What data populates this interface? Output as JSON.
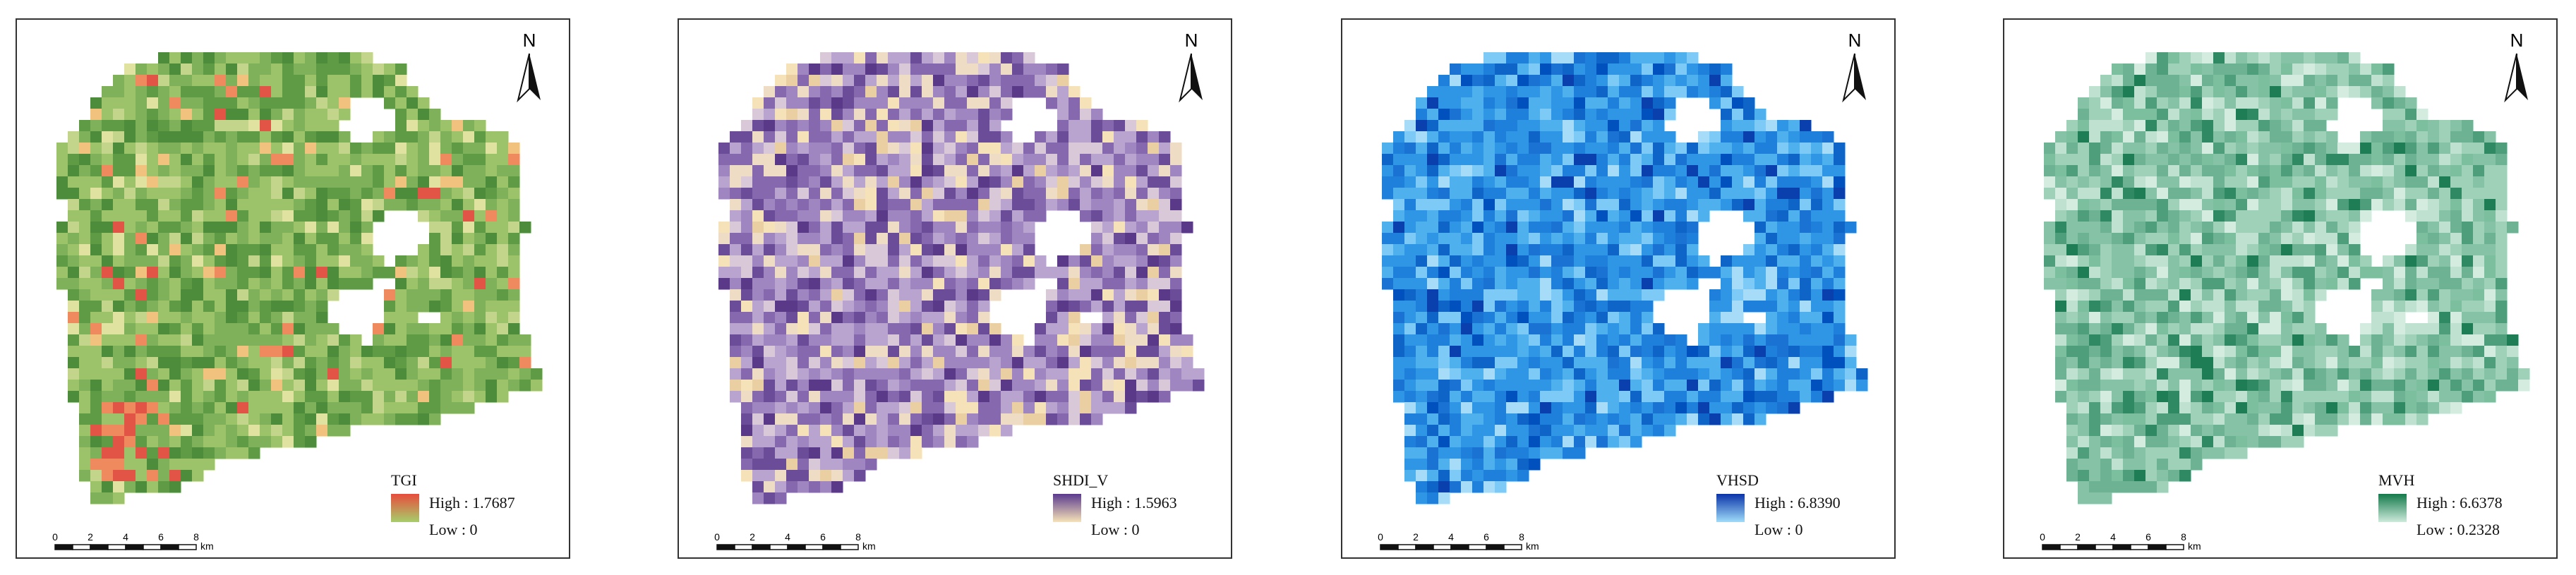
{
  "panels": [
    {
      "legend_title": "TGI",
      "high_label": "High : 1.7687",
      "low_label": "Low : 0",
      "colors": [
        "#9cc26a",
        "#7fb05a",
        "#5f9a45",
        "#4d8c3a",
        "#c2d58a",
        "#e0e2a0",
        "#f1c27d",
        "#ee8a5e",
        "#e25546"
      ],
      "weights": [
        0.28,
        0.22,
        0.2,
        0.12,
        0.08,
        0.04,
        0.03,
        0.02,
        0.01
      ],
      "ramp": [
        "#e74c3c",
        "#a5cf6a"
      ]
    },
    {
      "legend_title": "SHDI_V",
      "high_label": "High : 1.5963",
      "low_label": "Low : 0",
      "colors": [
        "#b9a4cf",
        "#9f86c0",
        "#8568ae",
        "#6a4c98",
        "#5a3a88",
        "#d8c8d8",
        "#eedcc4",
        "#f5e2b8",
        "#e9cfa2"
      ],
      "weights": [
        0.18,
        0.2,
        0.17,
        0.1,
        0.05,
        0.1,
        0.1,
        0.06,
        0.04
      ],
      "ramp": [
        "#5b3a8e",
        "#f6e3b6"
      ]
    },
    {
      "legend_title": "VHSD",
      "high_label": "High : 6.8390",
      "low_label": "Low : 0",
      "colors": [
        "#4fb0ee",
        "#2f96e6",
        "#1f80dc",
        "#0f64c8",
        "#0a3fae",
        "#7ccaf5",
        "#a6dcf8",
        "#1a72d2",
        "#0050bd"
      ],
      "weights": [
        0.22,
        0.24,
        0.18,
        0.08,
        0.04,
        0.1,
        0.05,
        0.06,
        0.03
      ],
      "ramp": [
        "#0b33a8",
        "#9fdcf8"
      ]
    },
    {
      "legend_title": "MVH",
      "high_label": "High : 6.6378",
      "low_label": "Low : 0.2328",
      "colors": [
        "#9fd0b8",
        "#86c2a6",
        "#6db393",
        "#4f9e7b",
        "#2f8a63",
        "#bfe2d0",
        "#d4ece0",
        "#1f7d55",
        "#7cbf9f"
      ],
      "weights": [
        0.22,
        0.2,
        0.16,
        0.08,
        0.04,
        0.12,
        0.08,
        0.03,
        0.07
      ],
      "ramp": [
        "#137a4b",
        "#cdeadb"
      ]
    }
  ],
  "north_label": "N",
  "scale_ticks": [
    "0",
    "2",
    "4",
    "6",
    "8"
  ],
  "scale_unit": "km"
}
